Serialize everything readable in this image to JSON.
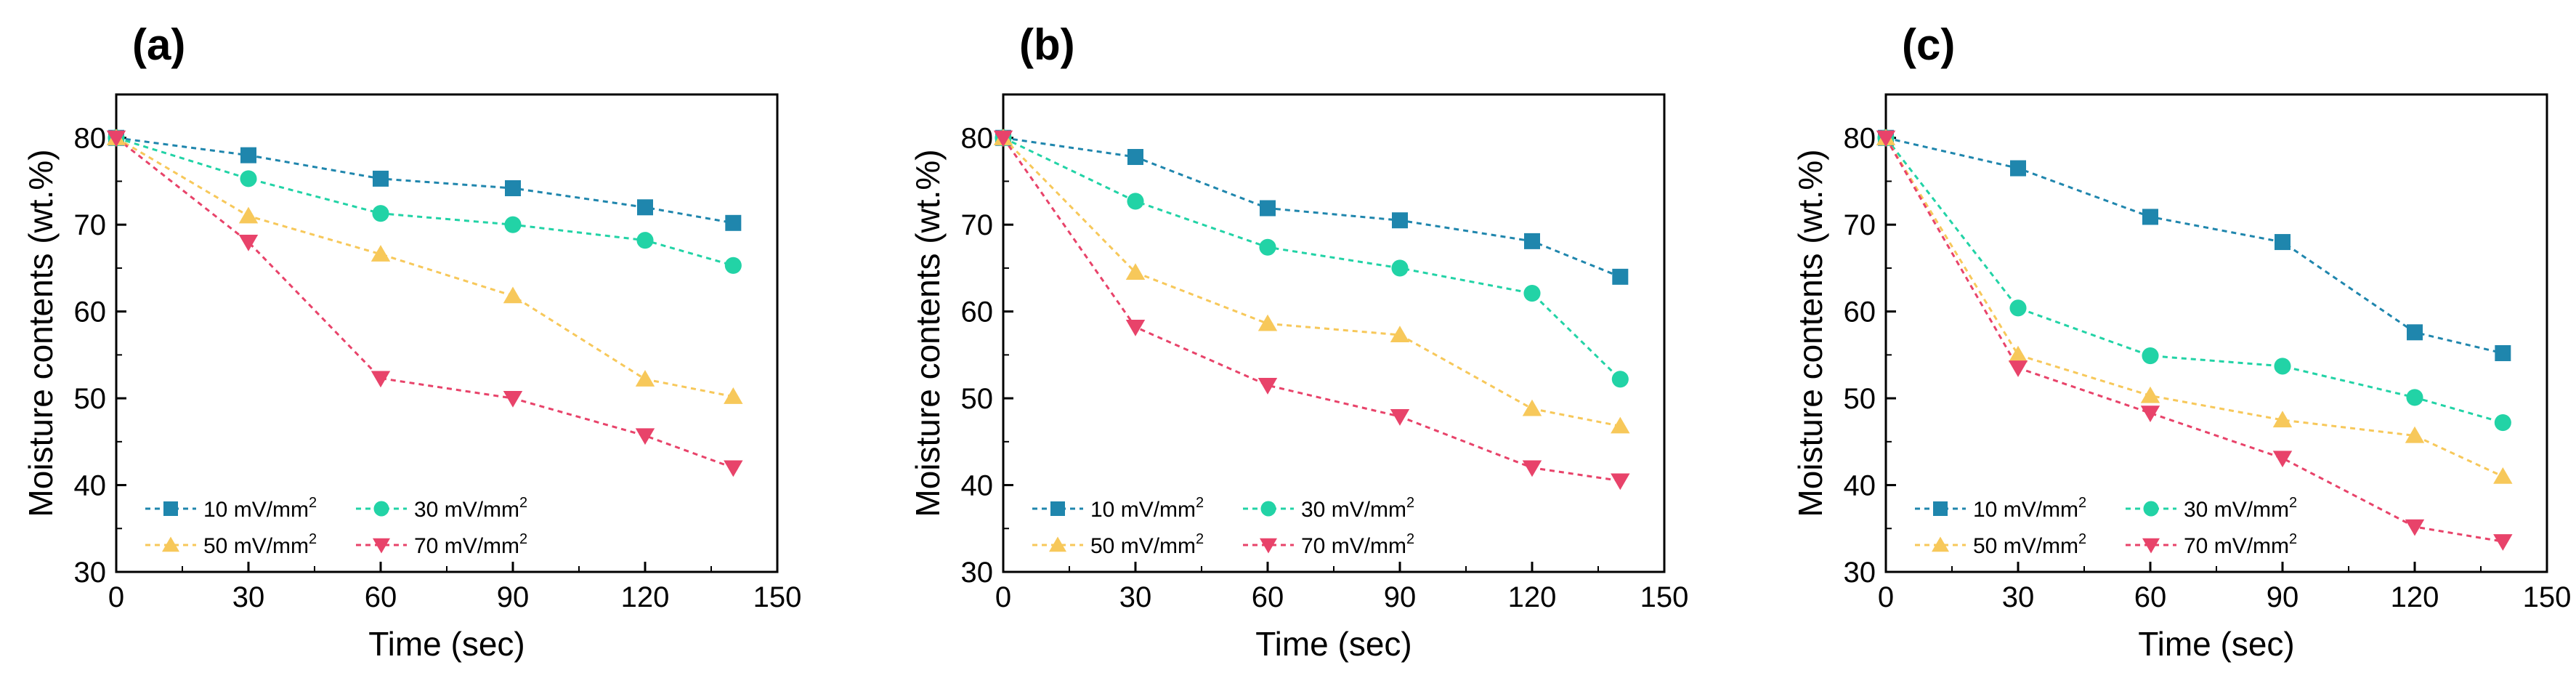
{
  "chart_data": [
    {
      "type": "line",
      "panel_label": "(a)",
      "x": [
        0,
        30,
        60,
        90,
        120,
        140
      ],
      "xlabel": "Time (sec)",
      "ylabel": "Moisture contents (wt.%)",
      "xlim": [
        0,
        150
      ],
      "ylim": [
        30,
        85
      ],
      "xticks": [
        0,
        30,
        60,
        90,
        120,
        150
      ],
      "yticks": [
        30,
        40,
        50,
        60,
        70,
        80
      ],
      "series": [
        {
          "name": "10 mV/mm",
          "sup": "2",
          "color": "#1f86ad",
          "marker": "square",
          "values": [
            80,
            78,
            75.3,
            74.2,
            72,
            70.2
          ]
        },
        {
          "name": "30 mV/mm",
          "sup": "2",
          "color": "#22d3a6",
          "marker": "circle",
          "values": [
            80,
            75.3,
            71.3,
            70,
            68.2,
            65.3
          ]
        },
        {
          "name": "50 mV/mm",
          "sup": "2",
          "color": "#f7c85a",
          "marker": "triangle-up",
          "values": [
            80,
            71,
            66.6,
            61.8,
            52.2,
            50.2
          ]
        },
        {
          "name": "70 mV/mm",
          "sup": "2",
          "color": "#e8436a",
          "marker": "triangle-down",
          "values": [
            80,
            68,
            52.3,
            50,
            45.7,
            42
          ]
        }
      ]
    },
    {
      "type": "line",
      "panel_label": "(b)",
      "x": [
        0,
        30,
        60,
        90,
        120,
        140
      ],
      "xlabel": "Time (sec)",
      "ylabel": "Moisture contents (wt.%)",
      "xlim": [
        0,
        150
      ],
      "ylim": [
        30,
        85
      ],
      "xticks": [
        0,
        30,
        60,
        90,
        120,
        150
      ],
      "yticks": [
        30,
        40,
        50,
        60,
        70,
        80
      ],
      "series": [
        {
          "name": "10 mV/mm",
          "sup": "2",
          "color": "#1f86ad",
          "marker": "square",
          "values": [
            80,
            77.8,
            71.9,
            70.5,
            68.1,
            64
          ]
        },
        {
          "name": "30 mV/mm",
          "sup": "2",
          "color": "#22d3a6",
          "marker": "circle",
          "values": [
            80,
            72.7,
            67.4,
            65,
            62.1,
            52.2
          ]
        },
        {
          "name": "50 mV/mm",
          "sup": "2",
          "color": "#f7c85a",
          "marker": "triangle-up",
          "values": [
            80,
            64.5,
            58.6,
            57.3,
            48.8,
            46.8
          ]
        },
        {
          "name": "70 mV/mm",
          "sup": "2",
          "color": "#e8436a",
          "marker": "triangle-down",
          "values": [
            80,
            58.2,
            51.5,
            47.9,
            42,
            40.5
          ]
        }
      ]
    },
    {
      "type": "line",
      "panel_label": "(c)",
      "x": [
        0,
        30,
        60,
        90,
        120,
        140
      ],
      "xlabel": "Time (sec)",
      "ylabel": "Moisture contents (wt.%)",
      "xlim": [
        0,
        150
      ],
      "ylim": [
        30,
        85
      ],
      "xticks": [
        0,
        30,
        60,
        90,
        120,
        150
      ],
      "yticks": [
        30,
        40,
        50,
        60,
        70,
        80
      ],
      "series": [
        {
          "name": "10 mV/mm",
          "sup": "2",
          "color": "#1f86ad",
          "marker": "square",
          "values": [
            80,
            76.5,
            70.9,
            68,
            57.6,
            55.2
          ]
        },
        {
          "name": "30 mV/mm",
          "sup": "2",
          "color": "#22d3a6",
          "marker": "circle",
          "values": [
            80,
            60.4,
            54.9,
            53.7,
            50.1,
            47.2
          ]
        },
        {
          "name": "50 mV/mm",
          "sup": "2",
          "color": "#f7c85a",
          "marker": "triangle-up",
          "values": [
            80,
            55,
            50.3,
            47.5,
            45.7,
            41
          ]
        },
        {
          "name": "70 mV/mm",
          "sup": "2",
          "color": "#e8436a",
          "marker": "triangle-down",
          "values": [
            80,
            53.5,
            48.3,
            43.1,
            35.2,
            33.5
          ]
        }
      ]
    }
  ]
}
